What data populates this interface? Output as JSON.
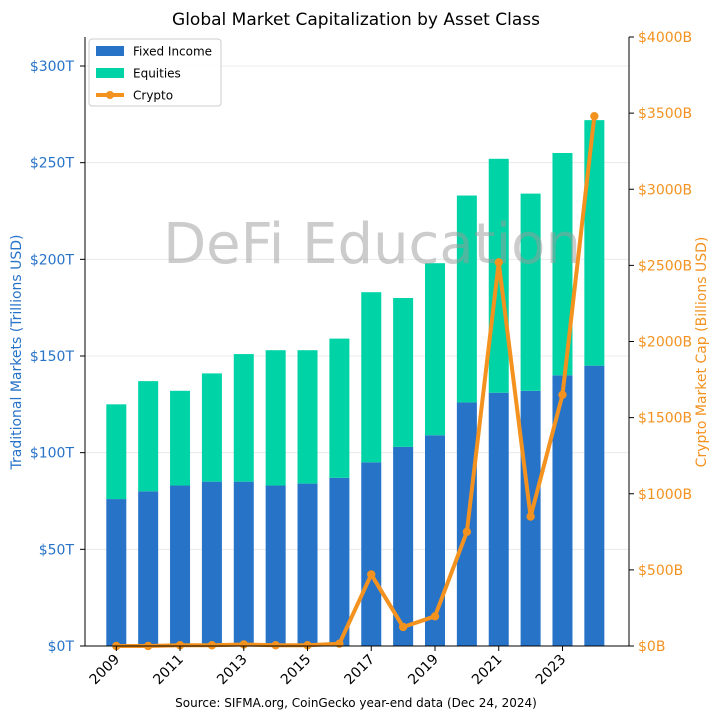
{
  "chart_data": {
    "type": "bar",
    "title": "Global Market Capitalization by Asset Class",
    "source": "Source: SIFMA.org, CoinGecko year-end data (Dec 24, 2024)",
    "watermark": "DeFi Education",
    "categories": [
      "2009",
      "2010",
      "2011",
      "2012",
      "2013",
      "2014",
      "2015",
      "2016",
      "2017",
      "2018",
      "2019",
      "2020",
      "2021",
      "2022",
      "2023",
      "2024"
    ],
    "x_tick_labels": [
      "2009",
      "2011",
      "2013",
      "2015",
      "2017",
      "2019",
      "2021",
      "2023"
    ],
    "stacked": true,
    "series": [
      {
        "name": "Fixed Income",
        "type": "bar",
        "axis": "left",
        "color": "#2773c8",
        "values": [
          76,
          80,
          83,
          85,
          85,
          83,
          84,
          87,
          95,
          103,
          109,
          126,
          131,
          132,
          140,
          145
        ]
      },
      {
        "name": "Equities",
        "type": "bar",
        "axis": "left",
        "color": "#00d4a6",
        "values": [
          49,
          57,
          49,
          56,
          66,
          70,
          69,
          72,
          88,
          77,
          89,
          107,
          121,
          102,
          115,
          127
        ]
      },
      {
        "name": "Crypto",
        "type": "line",
        "axis": "right",
        "color": "#f3921f",
        "values": [
          0,
          0,
          5,
          5,
          10,
          5,
          5,
          15,
          470,
          125,
          195,
          750,
          2520,
          850,
          1650,
          3480
        ]
      }
    ],
    "y_left": {
      "label": "Traditional Markets (Trillions USD)",
      "lim": [
        0,
        315
      ],
      "ticks": [
        0,
        50,
        100,
        150,
        200,
        250,
        300
      ],
      "prefix": "$",
      "suffix": "T",
      "color": "#2773c8"
    },
    "y_right": {
      "label": "Crypto Market Cap (Billions USD)",
      "lim": [
        0,
        4000
      ],
      "ticks": [
        0,
        500,
        1000,
        1500,
        2000,
        2500,
        3000,
        3500,
        4000
      ],
      "prefix": "$",
      "suffix": "B",
      "color": "#f3921f"
    },
    "grid": true,
    "legend_position": "top-left"
  }
}
